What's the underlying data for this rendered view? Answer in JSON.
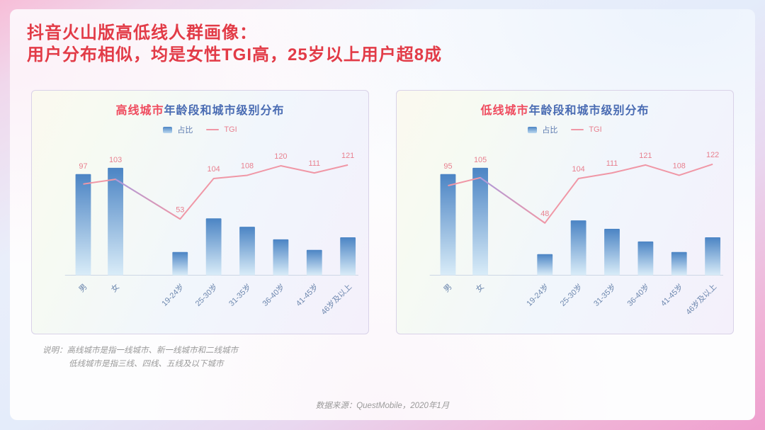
{
  "slide": {
    "title_line1": "抖音火山版高低线人群画像：",
    "title_line2": "用户分布相似，均是女性TGI高，25岁以上用户超8成",
    "note_line1": "说明：高线城市是指一线城市、新一线城市和二线城市",
    "note_line2": "低线城市是指三线、四线、五线及以下城市",
    "source": "数据来源：QuestMobile，2020年1月"
  },
  "colors": {
    "title_red": "#e23b47",
    "panel_title_highlight": "#ef4b5e",
    "panel_title_blue": "#4a6cb3",
    "bar_top": "#4b84c4",
    "bar_bottom": "#d9ecf8",
    "line_pink": "#f097a6",
    "line_purple": "#a79be0",
    "value_label_pink": "#e8808f",
    "axis_label_blue": "#6d87ae",
    "axis_line": "#cdd7e5",
    "note_gray": "#9a9a9a"
  },
  "chart_data": [
    {
      "type": "bar+line",
      "title_highlight": "高线城市",
      "title_rest": "年龄段和城市级别分布",
      "legend_bar": "占比",
      "legend_line": "TGI",
      "legend_position": "top",
      "grid": false,
      "categories": [
        "男",
        "女",
        "19-24岁",
        "25-30岁",
        "31-35岁",
        "36-40岁",
        "41-45岁",
        "46岁及以上"
      ],
      "series": [
        {
          "name": "占比",
          "type": "bar",
          "unit": "%",
          "values_estimated": true,
          "values": [
            48,
            51,
            11,
            27,
            23,
            17,
            12,
            18
          ]
        },
        {
          "name": "TGI",
          "type": "line",
          "values": [
            97,
            103,
            53,
            104,
            108,
            120,
            111,
            121
          ]
        }
      ]
    },
    {
      "type": "bar+line",
      "title_highlight": "低线城市",
      "title_rest": "年龄段和城市级别分布",
      "legend_bar": "占比",
      "legend_line": "TGI",
      "legend_position": "top",
      "grid": false,
      "categories": [
        "男",
        "女",
        "19-24岁",
        "25-30岁",
        "31-35岁",
        "36-40岁",
        "41-45岁",
        "46岁及以上"
      ],
      "series": [
        {
          "name": "占比",
          "type": "bar",
          "unit": "%",
          "values_estimated": true,
          "values": [
            48,
            51,
            10,
            26,
            22,
            16,
            11,
            18
          ]
        },
        {
          "name": "TGI",
          "type": "line",
          "values": [
            95,
            105,
            48,
            104,
            111,
            121,
            108,
            122
          ]
        }
      ]
    }
  ]
}
